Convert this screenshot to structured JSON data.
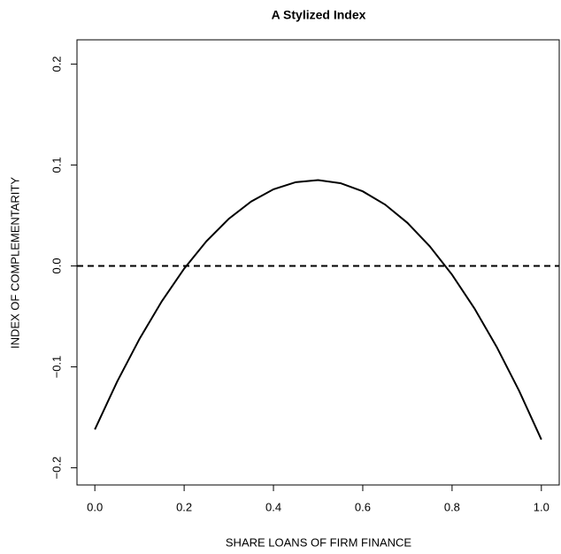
{
  "chart_data": {
    "type": "line",
    "title": "A Stylized Index",
    "x_label": "SHARE LOANS OF FIRM FINANCE",
    "y_label": "INDEX OF COMPLEMENTARITY",
    "x": [
      0,
      0.05,
      0.1,
      0.15,
      0.2,
      0.25,
      0.3,
      0.35,
      0.4,
      0.45,
      0.5,
      0.55,
      0.6,
      0.65,
      0.7,
      0.75,
      0.8,
      0.85,
      0.9,
      0.95,
      1
    ],
    "series": [
      {
        "color": "#000000",
        "values": [
          -0.162,
          -0.1146,
          -0.0723,
          -0.035,
          -0.0027,
          0.0245,
          0.0467,
          0.0638,
          0.0759,
          0.083,
          0.085,
          0.082,
          0.0739,
          0.0608,
          0.0427,
          0.0195,
          -0.0087,
          -0.042,
          -0.0803,
          -0.1236,
          -0.172
        ]
      }
    ],
    "hline": 0,
    "xlim": [
      -0.04,
      1.04
    ],
    "ylim": [
      -0.217,
      0.224
    ],
    "xticks": [
      {
        "value": 0,
        "label": "0.0"
      },
      0.2,
      0.4,
      0.6,
      0.8,
      {
        "value": 1,
        "label": "1.0"
      }
    ],
    "yticks": [
      {
        "value": -0.2,
        "label": "−0.2"
      },
      {
        "value": -0.1,
        "label": "−0.1"
      },
      {
        "value": 0,
        "label": "0.0"
      },
      0.1,
      0.2
    ]
  }
}
